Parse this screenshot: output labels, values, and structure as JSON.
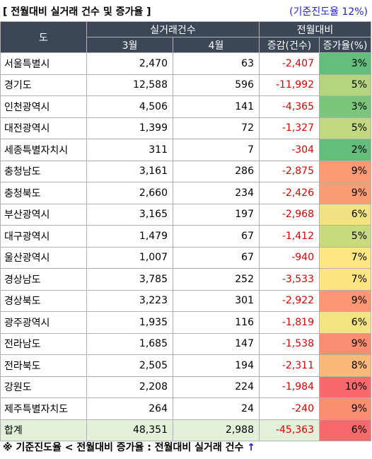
{
  "header": {
    "title": "[ 전월대비 실거래 건수 및 증가율 ]",
    "note": "(기준진도율 12%)"
  },
  "columns": {
    "region": "도",
    "group_trades": "실거래건수",
    "month_prev": "3월",
    "month_cur": "4월",
    "group_mom": "전월대비",
    "change": "증감(건수)",
    "rate": "증가율(%)"
  },
  "rows": [
    {
      "region": "서울특별시",
      "m3": "2,470",
      "m4": "63",
      "diff": "-2,407",
      "rate": "3%",
      "color": "#63be7b"
    },
    {
      "region": "경기도",
      "m3": "12,588",
      "m4": "596",
      "diff": "-11,992",
      "rate": "5%",
      "color": "#b4d57e"
    },
    {
      "region": "인천광역시",
      "m3": "4,506",
      "m4": "141",
      "diff": "-4,365",
      "rate": "3%",
      "color": "#7cc57c"
    },
    {
      "region": "대전광역시",
      "m3": "1,399",
      "m4": "72",
      "diff": "-1,327",
      "rate": "5%",
      "color": "#c2d97f"
    },
    {
      "region": "세종특별자치시",
      "m3": "311",
      "m4": "7",
      "diff": "-304",
      "rate": "2%",
      "color": "#63be7b"
    },
    {
      "region": "충청남도",
      "m3": "3,161",
      "m4": "286",
      "diff": "-2,875",
      "rate": "9%",
      "color": "#fa9a74"
    },
    {
      "region": "충청북도",
      "m3": "2,660",
      "m4": "234",
      "diff": "-2,426",
      "rate": "9%",
      "color": "#fa9d75"
    },
    {
      "region": "부산광역시",
      "m3": "3,165",
      "m4": "197",
      "diff": "-2,968",
      "rate": "6%",
      "color": "#f1e383"
    },
    {
      "region": "대구광역시",
      "m3": "1,479",
      "m4": "67",
      "diff": "-1,412",
      "rate": "5%",
      "color": "#c9db80"
    },
    {
      "region": "울산광역시",
      "m3": "1,007",
      "m4": "67",
      "diff": "-940",
      "rate": "7%",
      "color": "#fde683"
    },
    {
      "region": "경상남도",
      "m3": "3,785",
      "m4": "252",
      "diff": "-3,533",
      "rate": "7%",
      "color": "#fde482"
    },
    {
      "region": "경상북도",
      "m3": "3,223",
      "m4": "301",
      "diff": "-2,922",
      "rate": "9%",
      "color": "#fa9673"
    },
    {
      "region": "광주광역시",
      "m3": "1,935",
      "m4": "116",
      "diff": "-1,819",
      "rate": "6%",
      "color": "#f2e383"
    },
    {
      "region": "전라남도",
      "m3": "1,685",
      "m4": "147",
      "diff": "-1,538",
      "rate": "9%",
      "color": "#f98d71"
    },
    {
      "region": "전라북도",
      "m3": "2,505",
      "m4": "194",
      "diff": "-2,311",
      "rate": "8%",
      "color": "#fbb979"
    },
    {
      "region": "강원도",
      "m3": "2,208",
      "m4": "224",
      "diff": "-1,984",
      "rate": "10%",
      "color": "#f8696b"
    },
    {
      "region": "제주특별자치도",
      "m3": "264",
      "m4": "24",
      "diff": "-240",
      "rate": "9%",
      "color": "#f98e71"
    }
  ],
  "total": {
    "region": "합계",
    "m3": "48,351",
    "m4": "2,988",
    "diff": "-45,363",
    "rate": "6%",
    "color": "#f8696b"
  },
  "footnote": {
    "text": "※ 기준진도율 < 전월대비 증가율 : 전월대비 실거래 건수",
    "arrow": "↑"
  }
}
